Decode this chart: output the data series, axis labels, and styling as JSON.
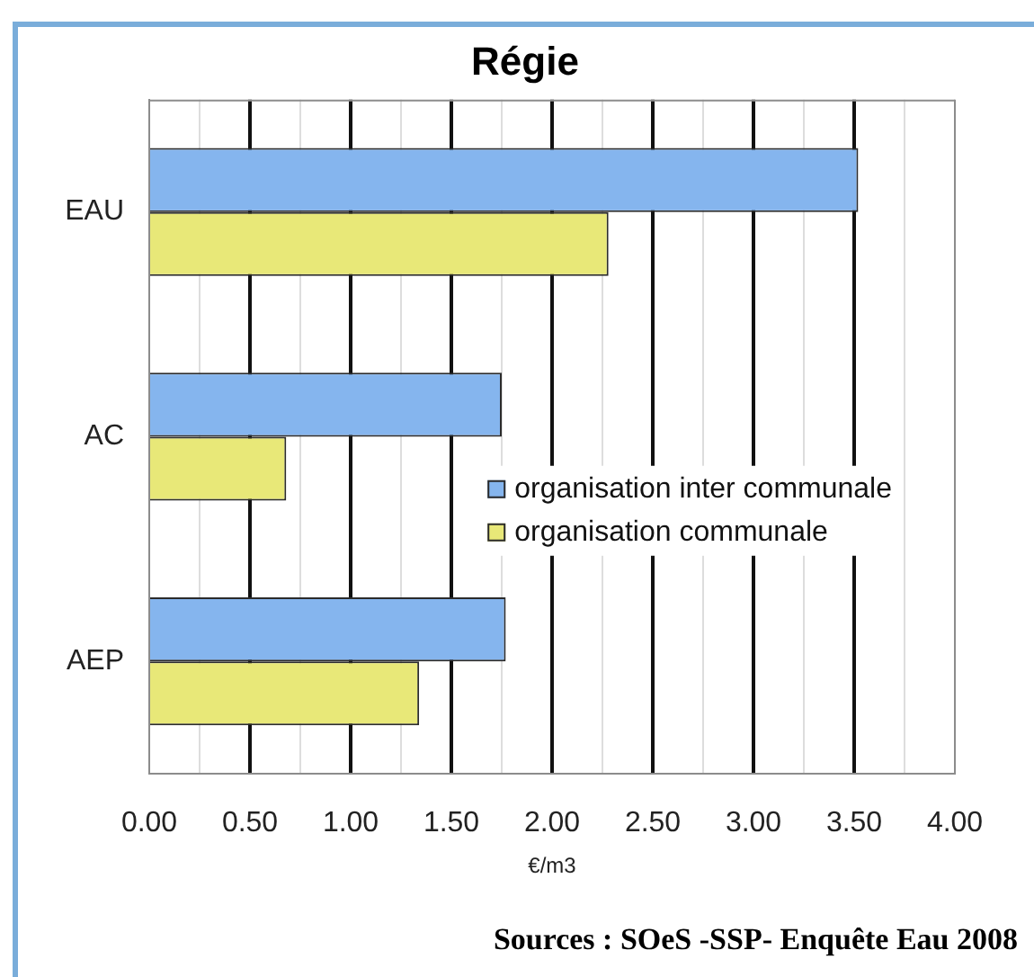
{
  "chart_data": {
    "type": "bar",
    "orientation": "horizontal",
    "title": "Régie",
    "xlabel": "€/m3",
    "categories": [
      "EAU",
      "AC",
      "AEP"
    ],
    "series": [
      {
        "name": "organisation inter communale",
        "color": "#85b5ee",
        "values": [
          3.52,
          1.75,
          1.77
        ]
      },
      {
        "name": "organisation communale",
        "color": "#e8e878",
        "values": [
          2.28,
          0.68,
          1.34
        ]
      }
    ],
    "xlim": [
      0,
      4
    ],
    "xticks": [
      {
        "value": 0,
        "label": "0.00"
      },
      {
        "value": 0.25,
        "label": null
      },
      {
        "value": 0.5,
        "label": "0.50"
      },
      {
        "value": 0.75,
        "label": null
      },
      {
        "value": 1,
        "label": "1.00"
      },
      {
        "value": 1.25,
        "label": null
      },
      {
        "value": 1.5,
        "label": "1.50"
      },
      {
        "value": 1.75,
        "label": null
      },
      {
        "value": 2,
        "label": "2.00"
      },
      {
        "value": 2.25,
        "label": null
      },
      {
        "value": 2.5,
        "label": "2.50"
      },
      {
        "value": 2.75,
        "label": null
      },
      {
        "value": 3,
        "label": "3.00"
      },
      {
        "value": 3.25,
        "label": null
      },
      {
        "value": 3.5,
        "label": "3.50"
      },
      {
        "value": 3.75,
        "label": null
      },
      {
        "value": 4,
        "label": "4.00"
      }
    ],
    "grid": "x",
    "legend": "right",
    "annotations": [
      "Sources : SOeS -SSP- Enquête Eau 2008"
    ]
  }
}
